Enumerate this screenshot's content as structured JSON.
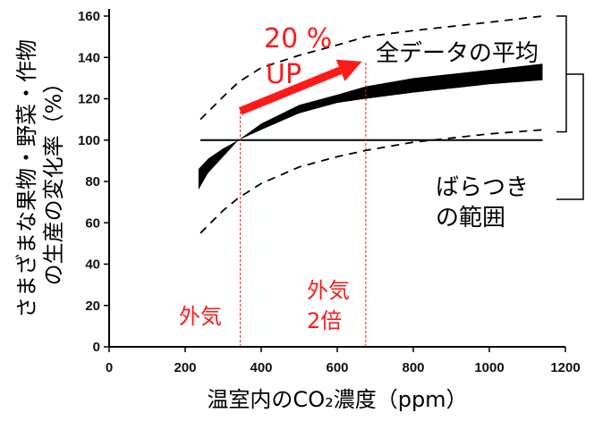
{
  "chart_data": {
    "type": "line",
    "xlabel": "温室内のCO₂濃度（ppm）",
    "ylabel_line1": "さまざまな果物・野菜・作物",
    "ylabel_line2": "の生産の変化率（%）",
    "xlim": [
      0,
      1200
    ],
    "ylim": [
      0,
      160
    ],
    "xticks": [
      0,
      200,
      400,
      600,
      800,
      1000,
      1200
    ],
    "yticks": [
      0,
      20,
      40,
      60,
      80,
      100,
      120,
      140,
      160
    ],
    "grid": false,
    "series": [
      {
        "name": "全データの平均",
        "style": "band",
        "x": [
          235,
          260,
          300,
          340,
          400,
          500,
          600,
          675,
          800,
          1000,
          1140
        ],
        "lower": [
          76,
          84,
          92,
          100,
          105,
          113,
          118,
          120,
          123,
          127,
          129
        ],
        "upper": [
          86,
          91,
          96,
          100,
          108,
          117,
          122,
          126,
          130,
          134,
          137
        ]
      },
      {
        "name": "upper-range",
        "style": "dashed",
        "x": [
          240,
          300,
          340,
          400,
          500,
          600,
          675,
          800,
          1000,
          1140
        ],
        "values": [
          110,
          121,
          128,
          135,
          141,
          146,
          150,
          153,
          157,
          160
        ]
      },
      {
        "name": "lower-range",
        "style": "dashed",
        "x": [
          240,
          300,
          340,
          400,
          500,
          600,
          675,
          800,
          1000,
          1140
        ],
        "values": [
          55,
          66,
          72,
          79,
          87,
          92,
          95,
          99,
          103,
          105
        ]
      },
      {
        "name": "baseline",
        "style": "solid",
        "x": [
          240,
          1140
        ],
        "values": [
          100,
          100
        ]
      }
    ],
    "reference_lines": [
      {
        "x": 345,
        "label": "外気"
      },
      {
        "x": 675,
        "label_line1": "外気",
        "label_line2": "2倍"
      }
    ],
    "arrow": {
      "from": [
        345,
        114
      ],
      "to": [
        665,
        138
      ],
      "label_line1": "20 %",
      "label_line2": "UP"
    },
    "annotations": {
      "mean_label": "全データの平均",
      "range_label_line1": "ばらつき",
      "range_label_line2": "の範囲"
    },
    "colors": {
      "annotation": "#ff1a1a",
      "data": "#000000"
    }
  }
}
